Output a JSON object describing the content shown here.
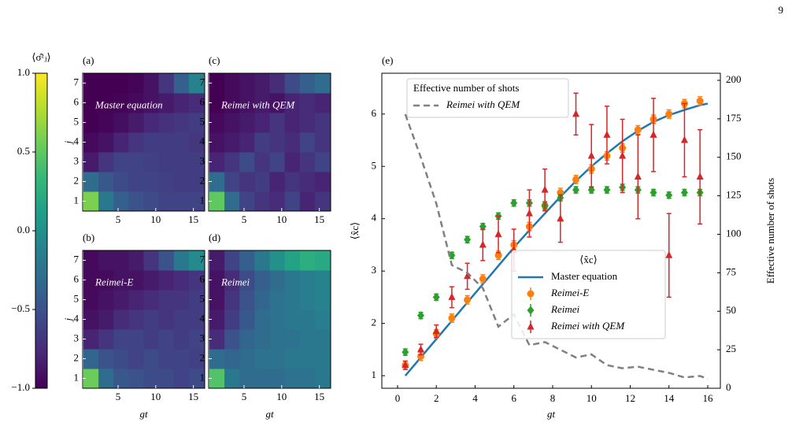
{
  "page_number": "9",
  "chart_data": [
    {
      "type": "colorbar",
      "label": "⟨σ̂ᶻⱼ⟩",
      "colormap": "viridis",
      "ylim": [
        -1,
        1
      ],
      "yticks": [
        {
          "value": -1,
          "label": "−1.0"
        },
        {
          "value": -0.5,
          "label": "−0.5"
        },
        {
          "value": 0,
          "label": "0.0"
        },
        0.5,
        {
          "value": 1,
          "label": "1.0"
        }
      ]
    },
    {
      "type": "heatmap",
      "panel": "(a)",
      "annotation": "Master equation",
      "ylabel": "j",
      "colormap": "viridis",
      "clim": [
        -1,
        1
      ],
      "xlim": [
        0.3,
        16.5
      ],
      "ylim": [
        0.5,
        7.5
      ],
      "xticks": [
        5,
        10,
        15
      ],
      "yticks": [
        1,
        2,
        3,
        4,
        5,
        6,
        7
      ],
      "x": [
        1.4,
        3.4,
        5.4,
        7.4,
        9.4,
        11.4,
        13.4,
        15.4
      ],
      "z": [
        [
          0.6,
          -0.2,
          -0.4,
          -0.5,
          -0.55,
          -0.6,
          -0.6,
          -0.6
        ],
        [
          -0.3,
          -0.45,
          -0.55,
          -0.6,
          -0.6,
          -0.62,
          -0.65,
          -0.65
        ],
        [
          -0.85,
          -0.7,
          -0.6,
          -0.6,
          -0.62,
          -0.65,
          -0.65,
          -0.65
        ],
        [
          -0.95,
          -0.9,
          -0.8,
          -0.7,
          -0.65,
          -0.65,
          -0.65,
          -0.68
        ],
        [
          -1,
          -0.97,
          -0.92,
          -0.85,
          -0.78,
          -0.72,
          -0.68,
          -0.65
        ],
        [
          -1,
          -1,
          -0.98,
          -0.95,
          -0.9,
          -0.85,
          -0.8,
          -0.75
        ],
        [
          -1,
          -1,
          -1,
          -0.98,
          -0.9,
          -0.7,
          -0.4,
          -0.1
        ]
      ]
    },
    {
      "type": "heatmap",
      "panel": "(b)",
      "annotation": "Reimei-E",
      "ylabel": "j",
      "xlabel": "gt",
      "colormap": "viridis",
      "clim": [
        -1,
        1
      ],
      "xlim": [
        0.3,
        16.5
      ],
      "ylim": [
        0.5,
        7.5
      ],
      "xticks": [
        5,
        10,
        15
      ],
      "yticks": [
        1,
        2,
        3,
        4,
        5,
        6,
        7
      ],
      "x": [
        1.4,
        3.4,
        5.4,
        7.4,
        9.4,
        11.4,
        13.4,
        15.4
      ],
      "z": [
        [
          0.55,
          -0.3,
          -0.45,
          -0.5,
          -0.55,
          -0.55,
          -0.6,
          -0.55
        ],
        [
          -0.35,
          -0.5,
          -0.55,
          -0.6,
          -0.55,
          -0.6,
          -0.6,
          -0.62
        ],
        [
          -0.8,
          -0.7,
          -0.6,
          -0.6,
          -0.65,
          -0.6,
          -0.65,
          -0.6
        ],
        [
          -0.9,
          -0.85,
          -0.75,
          -0.7,
          -0.65,
          -0.7,
          -0.65,
          -0.65
        ],
        [
          -0.95,
          -0.9,
          -0.85,
          -0.8,
          -0.75,
          -0.7,
          -0.7,
          -0.65
        ],
        [
          -0.95,
          -0.95,
          -0.9,
          -0.9,
          -0.85,
          -0.8,
          -0.75,
          -0.7
        ],
        [
          -0.95,
          -0.9,
          -0.9,
          -0.85,
          -0.7,
          -0.5,
          -0.2,
          -0.05
        ]
      ]
    },
    {
      "type": "heatmap",
      "panel": "(c)",
      "annotation": "Reimei with QEM",
      "colormap": "viridis",
      "clim": [
        -1,
        1
      ],
      "xlim": [
        0.3,
        16.5
      ],
      "ylim": [
        0.5,
        7.5
      ],
      "xticks": [
        5,
        10,
        15
      ],
      "yticks": [
        1,
        2,
        3,
        4,
        5,
        6,
        7
      ],
      "x": [
        1.4,
        3.4,
        5.4,
        7.4,
        9.4,
        11.4,
        13.4,
        15.4
      ],
      "z": [
        [
          0.5,
          -0.3,
          -0.6,
          -0.7,
          -0.75,
          -0.6,
          -0.8,
          -0.7
        ],
        [
          -0.3,
          -0.6,
          -0.7,
          -0.65,
          -0.8,
          -0.7,
          -0.75,
          -0.8
        ],
        [
          -0.8,
          -0.7,
          -0.55,
          -0.7,
          -0.6,
          -0.8,
          -0.7,
          -0.6
        ],
        [
          -0.9,
          -0.85,
          -0.8,
          -0.65,
          -0.7,
          -0.75,
          -0.6,
          -0.7
        ],
        [
          -0.95,
          -0.9,
          -0.85,
          -0.8,
          -0.7,
          -0.8,
          -0.75,
          -0.7
        ],
        [
          -1,
          -0.95,
          -0.9,
          -0.85,
          -0.9,
          -0.8,
          -0.75,
          -0.8
        ],
        [
          -1,
          -0.95,
          -0.9,
          -0.85,
          -0.75,
          -0.55,
          -0.4,
          -0.3
        ]
      ]
    },
    {
      "type": "heatmap",
      "panel": "(d)",
      "annotation": "Reimei",
      "xlabel": "gt",
      "colormap": "viridis",
      "clim": [
        -1,
        1
      ],
      "xlim": [
        0.3,
        16.5
      ],
      "ylim": [
        0.5,
        7.5
      ],
      "xticks": [
        5,
        10,
        15
      ],
      "yticks": [
        1,
        2,
        3,
        4,
        5,
        6,
        7
      ],
      "x": [
        1.4,
        3.4,
        5.4,
        7.4,
        9.4,
        11.4,
        13.4,
        15.4
      ],
      "z": [
        [
          0.45,
          -0.2,
          -0.3,
          -0.3,
          -0.3,
          -0.25,
          -0.25,
          -0.2
        ],
        [
          -0.3,
          -0.35,
          -0.3,
          -0.25,
          -0.25,
          -0.2,
          -0.2,
          -0.2
        ],
        [
          -0.75,
          -0.5,
          -0.35,
          -0.3,
          -0.25,
          -0.25,
          -0.2,
          -0.2
        ],
        [
          -0.85,
          -0.65,
          -0.45,
          -0.3,
          -0.25,
          -0.2,
          -0.2,
          -0.15
        ],
        [
          -0.9,
          -0.7,
          -0.5,
          -0.35,
          -0.25,
          -0.2,
          -0.15,
          -0.1
        ],
        [
          -0.9,
          -0.75,
          -0.55,
          -0.4,
          -0.3,
          -0.2,
          -0.15,
          -0.1
        ],
        [
          -0.85,
          -0.6,
          -0.4,
          -0.2,
          0.0,
          0.15,
          0.25,
          0.2
        ]
      ]
    },
    {
      "type": "line",
      "panel": "(e)",
      "xlabel": "gt",
      "ylabel": "⟨x̂c⟩",
      "y2label": "Effective number of shots",
      "xlim": [
        -0.81,
        16.65
      ],
      "ylim": [
        0.76,
        6.78
      ],
      "y2lim": [
        0,
        204.6
      ],
      "xticks": [
        0,
        2,
        4,
        6,
        8,
        10,
        12,
        14,
        16
      ],
      "yticks": [
        1,
        2,
        3,
        4,
        5,
        6
      ],
      "y2ticks": [
        0,
        25,
        50,
        75,
        100,
        125,
        150,
        175,
        200
      ],
      "legends": [
        {
          "title": "Effective number of shots",
          "loc": "upper left"
        },
        {
          "title": "⟨x̂c⟩",
          "loc": "center right"
        }
      ],
      "series": [
        {
          "name": "Master equation",
          "color": "#1f77b4",
          "style": "line",
          "legend": 1,
          "x": [
            0.4,
            1.2,
            2.0,
            2.8,
            3.6,
            4.4,
            5.2,
            6.0,
            6.8,
            7.6,
            8.4,
            9.2,
            10.0,
            10.8,
            11.6,
            12.4,
            13.2,
            14.0,
            14.8,
            15.6,
            16.0
          ],
          "values": [
            1.0,
            1.35,
            1.7,
            2.05,
            2.4,
            2.75,
            3.1,
            3.45,
            3.78,
            4.1,
            4.42,
            4.72,
            5.0,
            5.25,
            5.48,
            5.68,
            5.85,
            5.98,
            6.08,
            6.17,
            6.2
          ]
        },
        {
          "name": "Reimei-E",
          "color": "#ff7f0e",
          "style": "circle",
          "legend": 1,
          "x": [
            0.4,
            1.2,
            2.0,
            2.8,
            3.6,
            4.4,
            5.2,
            6.0,
            6.8,
            7.6,
            8.4,
            9.2,
            10.0,
            10.8,
            11.6,
            12.4,
            13.2,
            14.0,
            14.8,
            15.6
          ],
          "values": [
            1.2,
            1.37,
            1.8,
            2.1,
            2.45,
            2.85,
            3.3,
            3.5,
            3.85,
            4.25,
            4.5,
            4.75,
            4.95,
            5.2,
            5.35,
            5.7,
            5.9,
            6.0,
            6.2,
            6.25
          ],
          "errors": [
            0.08,
            0.08,
            0.08,
            0.08,
            0.08,
            0.08,
            0.08,
            0.08,
            0.08,
            0.08,
            0.08,
            0.08,
            0.08,
            0.08,
            0.08,
            0.08,
            0.08,
            0.08,
            0.08,
            0.08
          ]
        },
        {
          "name": "Reimei",
          "color": "#2ca02c",
          "style": "diamond",
          "legend": 1,
          "x": [
            0.4,
            1.2,
            2.0,
            2.8,
            3.6,
            4.4,
            5.2,
            6.0,
            6.8,
            7.6,
            8.4,
            9.2,
            10.0,
            10.8,
            11.6,
            12.4,
            13.2,
            14.0,
            14.8,
            15.6
          ],
          "values": [
            1.45,
            2.15,
            2.5,
            3.3,
            3.6,
            3.85,
            4.05,
            4.3,
            4.3,
            4.25,
            4.4,
            4.55,
            4.55,
            4.55,
            4.6,
            4.55,
            4.5,
            4.45,
            4.5,
            4.5
          ],
          "errors": [
            0.06,
            0.06,
            0.06,
            0.06,
            0.06,
            0.06,
            0.06,
            0.06,
            0.06,
            0.06,
            0.06,
            0.06,
            0.06,
            0.06,
            0.06,
            0.06,
            0.06,
            0.06,
            0.06,
            0.06
          ]
        },
        {
          "name": "Reimei with QEM",
          "color": "#d62728",
          "style": "triangle",
          "legend": 1,
          "x": [
            0.4,
            1.2,
            2.0,
            2.8,
            3.6,
            4.4,
            5.2,
            6.0,
            6.8,
            7.6,
            8.4,
            9.2,
            10.0,
            10.8,
            11.6,
            12.4,
            13.2,
            14.0,
            14.8,
            15.6
          ],
          "values": [
            1.2,
            1.5,
            1.85,
            2.5,
            2.9,
            3.5,
            3.7,
            3.4,
            4.1,
            4.55,
            4.0,
            6.0,
            5.2,
            5.6,
            5.2,
            4.8,
            5.6,
            3.3,
            5.5,
            4.8
          ],
          "errors": [
            0.08,
            0.1,
            0.12,
            0.2,
            0.25,
            0.3,
            0.35,
            0.4,
            0.45,
            0.4,
            0.45,
            0.4,
            0.6,
            0.55,
            0.7,
            0.8,
            0.7,
            0.8,
            0.7,
            0.9
          ]
        },
        {
          "name": "Reimei with QEM",
          "color": "#808080",
          "style": "dashed",
          "axis": "y2",
          "legend": 0,
          "x": [
            0.4,
            1.2,
            2.0,
            2.8,
            3.6,
            4.4,
            5.2,
            6.0,
            6.8,
            7.6,
            8.4,
            9.2,
            10.0,
            10.8,
            11.6,
            12.4,
            13.2,
            14.0,
            14.8,
            15.6,
            16.0
          ],
          "values": [
            178,
            150,
            120,
            80,
            75,
            65,
            40,
            48,
            28,
            30,
            25,
            20,
            22,
            15,
            13,
            14,
            12,
            10,
            7,
            8,
            6
          ]
        }
      ]
    }
  ]
}
